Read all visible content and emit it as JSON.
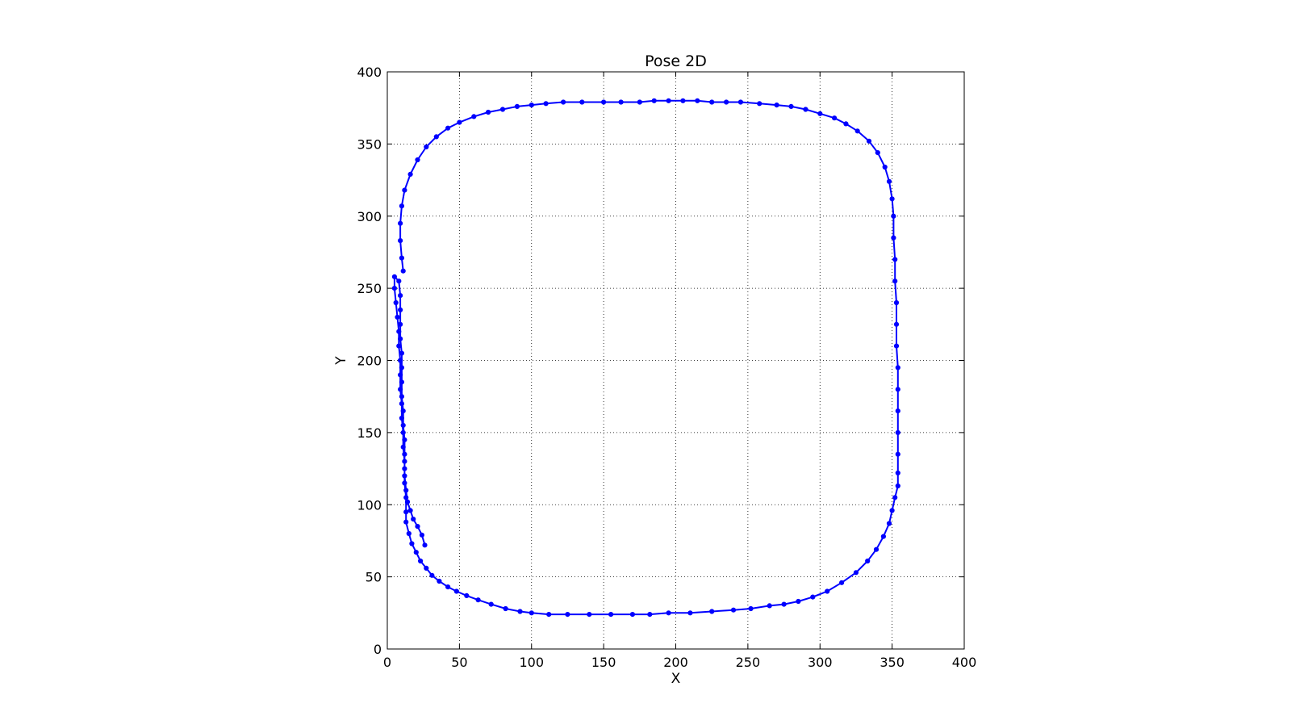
{
  "chart_data": {
    "type": "line",
    "title": "Pose 2D",
    "xlabel": "X",
    "ylabel": "Y",
    "xlim": [
      0,
      400
    ],
    "ylim": [
      0,
      400
    ],
    "xticks": [
      "0",
      "50",
      "100",
      "150",
      "200",
      "250",
      "300",
      "350",
      "400"
    ],
    "yticks": [
      "0",
      "50",
      "100",
      "150",
      "200",
      "250",
      "300",
      "350",
      "400"
    ],
    "grid": true,
    "grid_style": "dotted",
    "marker": "circle",
    "series": [
      {
        "color": "#0000ff",
        "points": [
          [
            26,
            72
          ],
          [
            24,
            79
          ],
          [
            21,
            85
          ],
          [
            18,
            90
          ],
          [
            16,
            96
          ],
          [
            14,
            102
          ],
          [
            13,
            110
          ],
          [
            12,
            120
          ],
          [
            12,
            130
          ],
          [
            11,
            140
          ],
          [
            11,
            150
          ],
          [
            10,
            160
          ],
          [
            10,
            170
          ],
          [
            9,
            180
          ],
          [
            9,
            190
          ],
          [
            9,
            200
          ],
          [
            8,
            210
          ],
          [
            8,
            220
          ],
          [
            7,
            230
          ],
          [
            6,
            240
          ],
          [
            5,
            250
          ],
          [
            5,
            258
          ],
          [
            8,
            255
          ],
          [
            9,
            245
          ],
          [
            9,
            235
          ],
          [
            9,
            225
          ],
          [
            9,
            215
          ],
          [
            10,
            205
          ],
          [
            10,
            195
          ],
          [
            10,
            185
          ],
          [
            10,
            175
          ],
          [
            11,
            165
          ],
          [
            11,
            155
          ],
          [
            12,
            145
          ],
          [
            12,
            135
          ],
          [
            12,
            125
          ],
          [
            12,
            115
          ],
          [
            13,
            105
          ],
          [
            13,
            95
          ],
          [
            13,
            88
          ],
          [
            15,
            80
          ],
          [
            17,
            73
          ],
          [
            20,
            67
          ],
          [
            23,
            61
          ],
          [
            27,
            56
          ],
          [
            31,
            51
          ],
          [
            36,
            47
          ],
          [
            42,
            43
          ],
          [
            48,
            40
          ],
          [
            55,
            37
          ],
          [
            63,
            34
          ],
          [
            72,
            31
          ],
          [
            82,
            28
          ],
          [
            92,
            26
          ],
          [
            100,
            25
          ],
          [
            112,
            24
          ],
          [
            125,
            24
          ],
          [
            140,
            24
          ],
          [
            155,
            24
          ],
          [
            170,
            24
          ],
          [
            182,
            24
          ],
          [
            195,
            25
          ],
          [
            210,
            25
          ],
          [
            225,
            26
          ],
          [
            240,
            27
          ],
          [
            252,
            28
          ],
          [
            265,
            30
          ],
          [
            275,
            31
          ],
          [
            285,
            33
          ],
          [
            295,
            36
          ],
          [
            305,
            40
          ],
          [
            315,
            46
          ],
          [
            325,
            53
          ],
          [
            333,
            61
          ],
          [
            339,
            69
          ],
          [
            344,
            78
          ],
          [
            348,
            87
          ],
          [
            350,
            96
          ],
          [
            352,
            105
          ],
          [
            354,
            113
          ],
          [
            354,
            122
          ],
          [
            354,
            135
          ],
          [
            354,
            150
          ],
          [
            354,
            165
          ],
          [
            354,
            180
          ],
          [
            354,
            195
          ],
          [
            353,
            210
          ],
          [
            353,
            225
          ],
          [
            353,
            240
          ],
          [
            352,
            255
          ],
          [
            352,
            270
          ],
          [
            351,
            285
          ],
          [
            351,
            300
          ],
          [
            350,
            312
          ],
          [
            348,
            324
          ],
          [
            345,
            334
          ],
          [
            340,
            344
          ],
          [
            334,
            352
          ],
          [
            326,
            359
          ],
          [
            318,
            364
          ],
          [
            310,
            368
          ],
          [
            300,
            371
          ],
          [
            290,
            374
          ],
          [
            280,
            376
          ],
          [
            270,
            377
          ],
          [
            258,
            378
          ],
          [
            245,
            379
          ],
          [
            235,
            379
          ],
          [
            225,
            379
          ],
          [
            215,
            380
          ],
          [
            205,
            380
          ],
          [
            195,
            380
          ],
          [
            185,
            380
          ],
          [
            175,
            379
          ],
          [
            162,
            379
          ],
          [
            150,
            379
          ],
          [
            135,
            379
          ],
          [
            122,
            379
          ],
          [
            110,
            378
          ],
          [
            100,
            377
          ],
          [
            90,
            376
          ],
          [
            80,
            374
          ],
          [
            70,
            372
          ],
          [
            60,
            369
          ],
          [
            50,
            365
          ],
          [
            42,
            361
          ],
          [
            34,
            355
          ],
          [
            27,
            348
          ],
          [
            21,
            339
          ],
          [
            16,
            329
          ],
          [
            12,
            318
          ],
          [
            10,
            307
          ],
          [
            9,
            295
          ],
          [
            9,
            283
          ],
          [
            10,
            271
          ],
          [
            11,
            262
          ]
        ]
      }
    ]
  }
}
